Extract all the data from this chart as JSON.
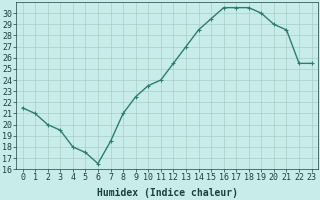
{
  "x": [
    0,
    1,
    2,
    3,
    4,
    5,
    6,
    7,
    8,
    9,
    10,
    11,
    12,
    13,
    14,
    15,
    16,
    17,
    18,
    19,
    20,
    21,
    22,
    23
  ],
  "y": [
    21.5,
    21.0,
    20.0,
    19.5,
    18.0,
    17.5,
    16.5,
    18.5,
    21.0,
    22.5,
    23.5,
    24.0,
    25.5,
    27.0,
    28.5,
    29.5,
    30.5,
    30.5,
    30.5,
    30.0,
    29.0,
    28.5,
    25.5,
    25.5
  ],
  "xlabel": "Humidex (Indice chaleur)",
  "ylim": [
    16,
    31
  ],
  "xlim": [
    -0.5,
    23.5
  ],
  "yticks": [
    16,
    17,
    18,
    19,
    20,
    21,
    22,
    23,
    24,
    25,
    26,
    27,
    28,
    29,
    30
  ],
  "xticks": [
    0,
    1,
    2,
    3,
    4,
    5,
    6,
    7,
    8,
    9,
    10,
    11,
    12,
    13,
    14,
    15,
    16,
    17,
    18,
    19,
    20,
    21,
    22,
    23
  ],
  "line_color": "#2e7d6e",
  "marker_color": "#2e7d6e",
  "bg_color": "#c8ecea",
  "grid_color": "#a8ceca",
  "tick_label_color": "#1a4040",
  "xlabel_color": "#1a4040",
  "xlabel_fontsize": 7,
  "tick_fontsize": 6,
  "line_width": 1.0,
  "marker_size": 3
}
